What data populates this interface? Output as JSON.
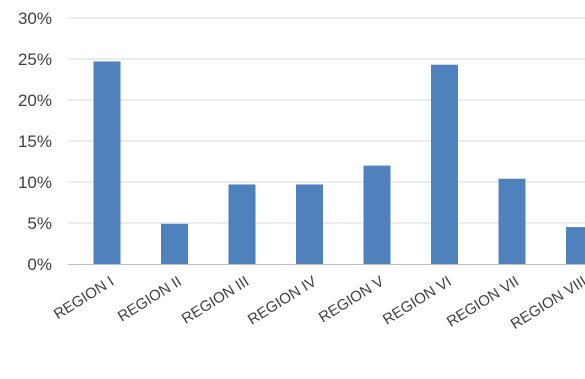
{
  "chart_data": {
    "type": "bar",
    "categories": [
      "REGION I",
      "REGION II",
      "REGION III",
      "REGION IV",
      "REGION V",
      "REGION VI",
      "REGION VII",
      "REGION VIII"
    ],
    "series": [
      {
        "values": [
          24.7,
          4.9,
          9.7,
          9.7,
          12.0,
          24.3,
          10.4,
          4.5
        ]
      }
    ],
    "y_ticks": [
      "0%",
      "5%",
      "10%",
      "15%",
      "20%",
      "25%",
      "30%"
    ],
    "ylim": [
      0,
      30
    ],
    "value_format": "percent",
    "grid": true,
    "legend": "none",
    "bar_color": "#4F81BD",
    "grid_color": "#D9D9D9",
    "title": "",
    "xlabel": "",
    "ylabel": ""
  }
}
